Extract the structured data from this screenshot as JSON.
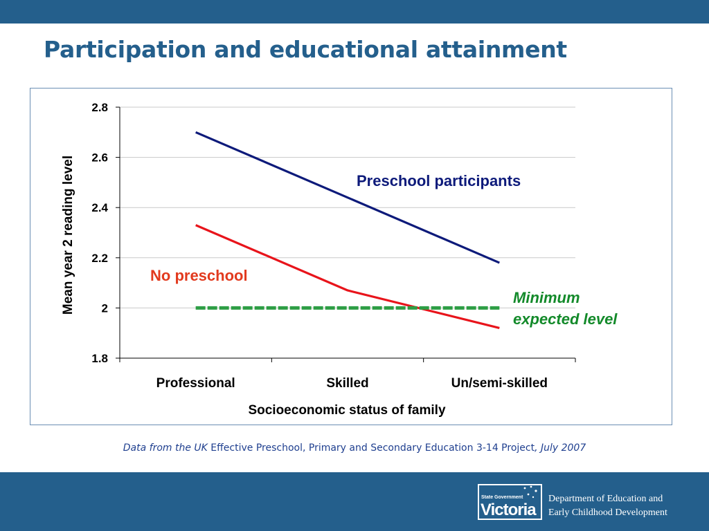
{
  "slide": {
    "title": "Participation and educational attainment"
  },
  "chart_data": {
    "type": "line",
    "xlabel": "Socioeconomic status of family",
    "ylabel": "Mean year 2 reading level",
    "categories": [
      "Professional",
      "Skilled",
      "Un/semi-skilled"
    ],
    "ylim": [
      1.8,
      2.8
    ],
    "yticks": [
      "2.8",
      "2.6",
      "2.4",
      "2.2",
      "2",
      "1.8"
    ],
    "grid": true,
    "series": [
      {
        "name": "Preschool participants",
        "values": [
          2.7,
          2.44,
          2.18
        ],
        "color": "#0d1a7a"
      },
      {
        "name": "No preschool",
        "values": [
          2.33,
          2.07,
          1.92
        ],
        "color": "#e8141b"
      },
      {
        "name": "Minimum expected level",
        "values": [
          2.0,
          2.0,
          2.0
        ],
        "color": "#2e9e45",
        "style": "dashed"
      }
    ],
    "annotations": {
      "preschool": "Preschool participants",
      "no_preschool": "No preschool",
      "minimum_line1": "Minimum",
      "minimum_line2": "expected level"
    }
  },
  "source": {
    "prefix": "Data from the UK",
    "body": " Effective Preschool, Primary and Secondary Education 3-14 Project",
    "suffix": ", July 2007"
  },
  "footer": {
    "logo_small": "State Government",
    "logo_big": "Victoria",
    "dept_line1": "Department of Education and",
    "dept_line2": "Early Childhood Development"
  },
  "colors": {
    "brand": "#245f8c",
    "title": "#245f8c",
    "source_text": "#1f3f8f"
  }
}
